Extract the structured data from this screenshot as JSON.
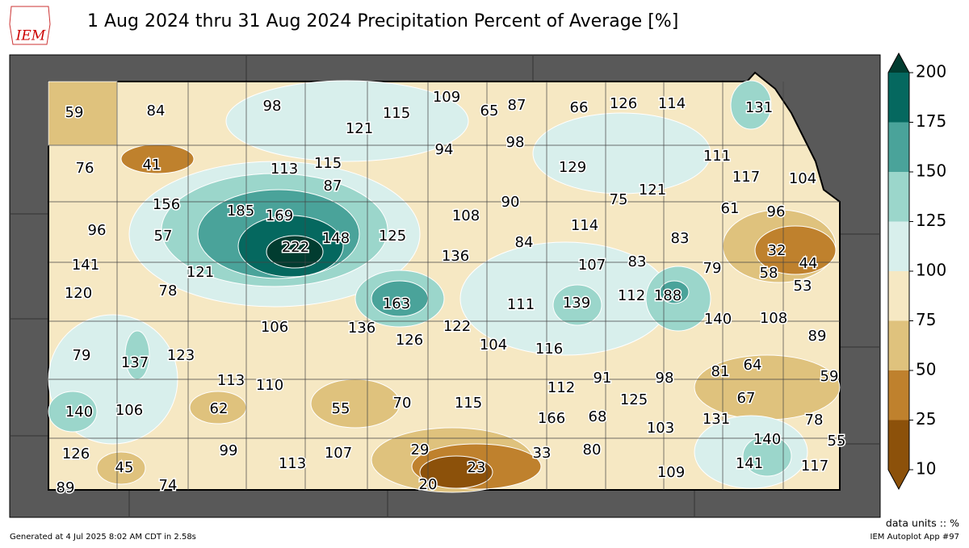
{
  "header": {
    "title": "1 Aug 2024 thru 31 Aug 2024 Precipitation Percent of Average [%]",
    "logo": "IEM"
  },
  "map": {
    "values": [
      59,
      84,
      98,
      121,
      115,
      109,
      65,
      87,
      66,
      126,
      114,
      131,
      76,
      41,
      113,
      115,
      87,
      94,
      98,
      129,
      111,
      117,
      104,
      156,
      185,
      169,
      121,
      75,
      90,
      108,
      114,
      61,
      96,
      96,
      57,
      222,
      148,
      125,
      84,
      83,
      32,
      44,
      141,
      121,
      136,
      107,
      83,
      79,
      58,
      53,
      120,
      78,
      163,
      111,
      139,
      112,
      188,
      140,
      108,
      106,
      136,
      126,
      122,
      104,
      116,
      89,
      79,
      137,
      123,
      64,
      81,
      59,
      113,
      110,
      55,
      70,
      115,
      112,
      91,
      98,
      125,
      67,
      140,
      106,
      62,
      166,
      68,
      131,
      103,
      78,
      126,
      99,
      107,
      113,
      29,
      33,
      80,
      140,
      55,
      45,
      23,
      141,
      117,
      109,
      89,
      74,
      20
    ]
  },
  "colorbar": {
    "ticks": [
      10,
      25,
      50,
      75,
      100,
      125,
      150,
      175,
      200
    ],
    "colors": [
      "#8c510a",
      "#bf812d",
      "#dfc27d",
      "#f6e8c3",
      "#d8efec",
      "#9bd6cb",
      "#4aa39a",
      "#05685f"
    ],
    "under": "#8c510a",
    "over": "#013c30"
  },
  "footer": {
    "units": "data units :: %",
    "generated": "Generated at 4 Jul 2025 8:02 AM CDT in 2.58s",
    "app": "IEM Autoplot App #97"
  }
}
